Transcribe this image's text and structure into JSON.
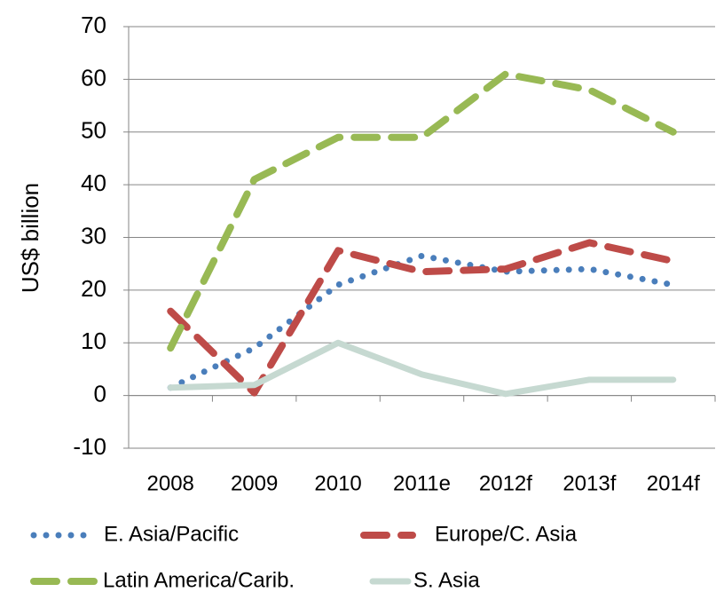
{
  "chart_data": {
    "type": "line",
    "y_label": "US$ billion",
    "categories": [
      "2008",
      "2009",
      "2010",
      "2011e",
      "2012f",
      "2013f",
      "2014f"
    ],
    "series": [
      {
        "name": "E. Asia/Pacific",
        "color": "#4a7ebb",
        "style": "dotted",
        "values": [
          1.5,
          9,
          21,
          26.5,
          23.5,
          24,
          21
        ]
      },
      {
        "name": "Europe/C. Asia",
        "color": "#be4b48",
        "style": "dashed",
        "values": [
          16,
          0.5,
          27.5,
          23.5,
          24,
          29,
          25.5
        ]
      },
      {
        "name": "Latin America/Carib.",
        "color": "#98b954",
        "style": "dashed",
        "values": [
          9,
          41,
          49,
          49,
          61,
          58,
          50
        ]
      },
      {
        "name": "S. Asia",
        "color": "#c6d9d1",
        "style": "solid",
        "values": [
          1.5,
          2,
          10,
          4,
          0.3,
          3,
          3
        ]
      }
    ],
    "ylim": [
      -10,
      70
    ],
    "yticks": [
      -10,
      0,
      10,
      20,
      30,
      40,
      50,
      60,
      70
    ],
    "grid": true
  }
}
